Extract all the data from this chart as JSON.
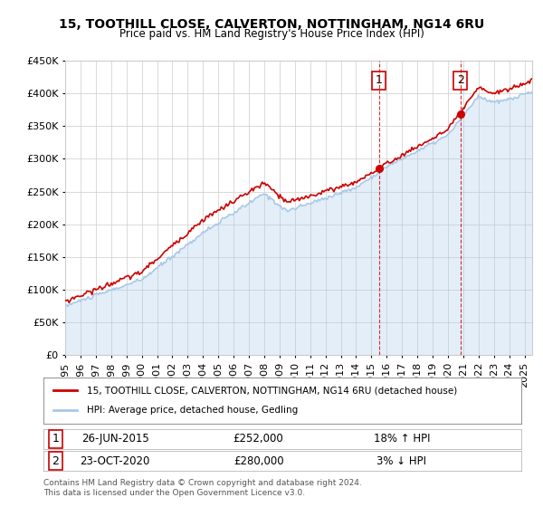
{
  "title": "15, TOOTHILL CLOSE, CALVERTON, NOTTINGHAM, NG14 6RU",
  "subtitle": "Price paid vs. HM Land Registry's House Price Index (HPI)",
  "legend_line1": "15, TOOTHILL CLOSE, CALVERTON, NOTTINGHAM, NG14 6RU (detached house)",
  "legend_line2": "HPI: Average price, detached house, Gedling",
  "footer": "Contains HM Land Registry data © Crown copyright and database right 2024.\nThis data is licensed under the Open Government Licence v3.0.",
  "sale1_label": "1",
  "sale1_date": "26-JUN-2015",
  "sale1_price": "£252,000",
  "sale1_hpi": "18% ↑ HPI",
  "sale1_year": 2015.49,
  "sale1_value": 252000,
  "sale2_label": "2",
  "sale2_date": "23-OCT-2020",
  "sale2_price": "£280,000",
  "sale2_hpi": "3% ↓ HPI",
  "sale2_year": 2020.81,
  "sale2_value": 280000,
  "hpi_color": "#a8c8e8",
  "price_color": "#cc0000",
  "marker_color": "#cc0000",
  "dashed_color": "#cc0000",
  "bg_color": "#ffffff",
  "grid_color": "#cccccc",
  "ylim": [
    0,
    450000
  ],
  "xlim_start": 1995.0,
  "xlim_end": 2025.5
}
